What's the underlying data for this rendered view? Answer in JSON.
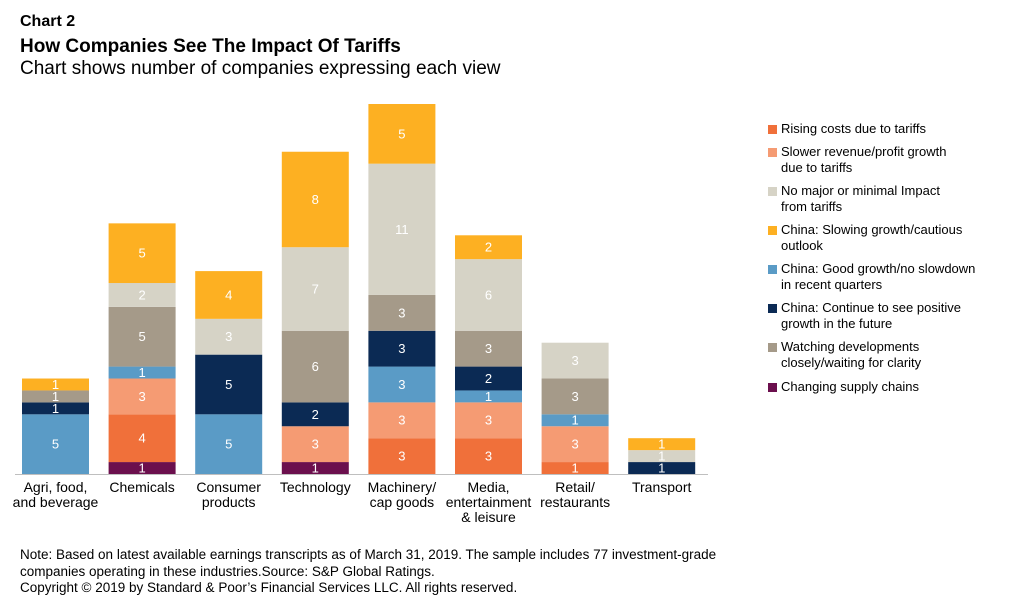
{
  "chart_data": {
    "type": "bar",
    "stacked": true,
    "kicker": "Chart 2",
    "title": "How Companies See The Impact Of Tariffs",
    "subtitle": "Chart shows number of companies expressing each view",
    "categories": [
      "Agri, food,\nand beverage",
      "Chemicals",
      "Consumer\nproducts",
      "Technology",
      "Machinery/\ncap goods",
      "Media,\nentertainment\n& leisure",
      "Retail/\nrestaurants",
      "Transport"
    ],
    "series": [
      {
        "name": "Changing supply chains",
        "color": "#6b0f4d",
        "values": [
          null,
          1,
          null,
          1,
          null,
          null,
          null,
          null
        ]
      },
      {
        "name": "Rising costs due to tariffs",
        "color": "#f0703a",
        "values": [
          null,
          4,
          null,
          null,
          3,
          3,
          1,
          null
        ]
      },
      {
        "name": "Slower revenue/profit growth\ndue to tariffs",
        "color": "#f59b73",
        "values": [
          null,
          3,
          null,
          3,
          3,
          3,
          3,
          null
        ]
      },
      {
        "name": "China: Good growth/no slowdown\n in recent quarters",
        "color": "#5a9bc6",
        "values": [
          5,
          1,
          5,
          null,
          3,
          1,
          1,
          null
        ]
      },
      {
        "name": "China: Continue to see positive\ngrowth in the future",
        "color": "#0b2a54",
        "values": [
          1,
          null,
          5,
          2,
          3,
          2,
          null,
          1
        ]
      },
      {
        "name": "Watching developments\nclosely/waiting for clarity",
        "color": "#a59a89",
        "values": [
          1,
          5,
          null,
          6,
          3,
          3,
          3,
          null
        ]
      },
      {
        "name": "No major or minimal Impact\nfrom tariffs",
        "color": "#d6d3c6",
        "values": [
          null,
          2,
          3,
          7,
          11,
          6,
          3,
          1
        ]
      },
      {
        "name": "China: Slowing growth/cautious\noutlook",
        "color": "#fdb022",
        "values": [
          1,
          5,
          4,
          8,
          5,
          2,
          null,
          1
        ]
      }
    ],
    "legend_order": [
      1,
      2,
      6,
      7,
      3,
      4,
      5,
      0
    ],
    "note": "Note: Based on latest available earnings transcripts as of March 31, 2019. The sample includes 77 investment-grade companies operating in these industries.Source: S&P Global Ratings.",
    "copyright": "Copyright © 2019 by Standard & Poor’s Financial Services LLC. All rights reserved."
  }
}
